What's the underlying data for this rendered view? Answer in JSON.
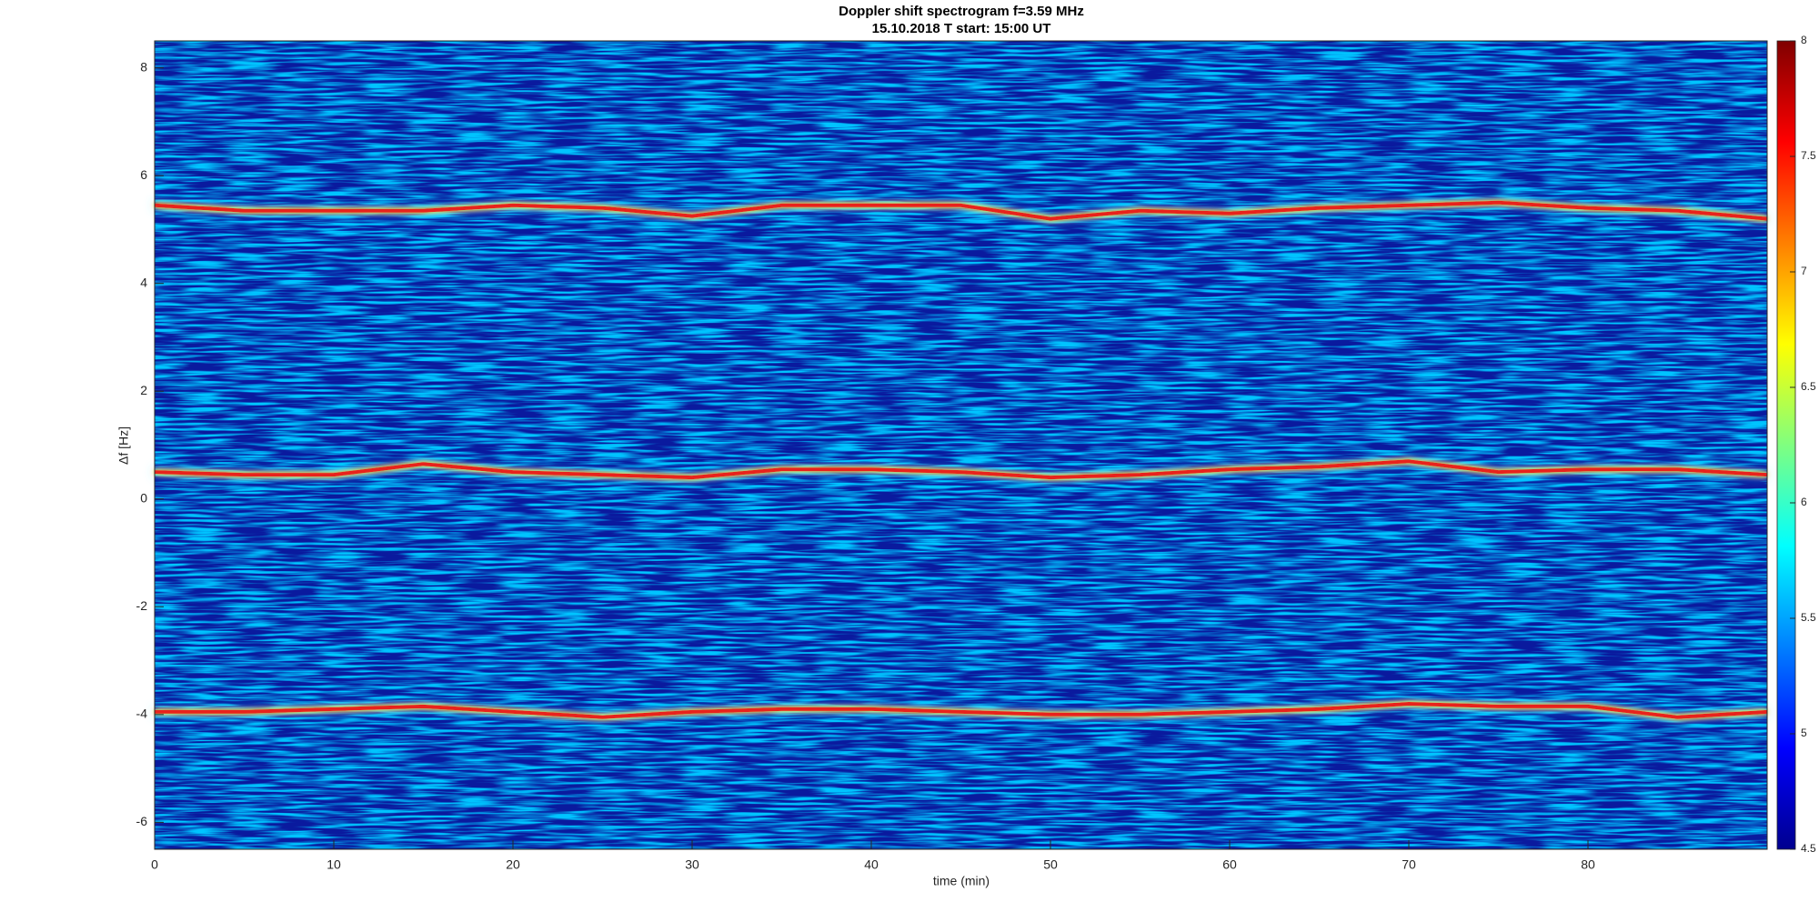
{
  "chart_data": {
    "type": "spectrogram",
    "title": "Doppler shift spectrogram f=3.59 MHz",
    "subtitle": "15.10.2018   T start: 15:00 UT",
    "xlabel": "time (min)",
    "ylabel": "Δf [Hz]",
    "xlim": [
      0,
      90
    ],
    "xticks": [
      0,
      10,
      20,
      30,
      40,
      50,
      60,
      70,
      80
    ],
    "ylim": [
      -6.5,
      8.5
    ],
    "yticks": [
      -6,
      -4,
      -2,
      0,
      2,
      4,
      6,
      8
    ],
    "clim": [
      4.5,
      8
    ],
    "cticks": [
      4.5,
      5,
      5.5,
      6,
      6.5,
      7,
      7.5,
      8
    ],
    "colormap": "jet",
    "series": [
      {
        "color": "#e8201a",
        "x": [
          0,
          5,
          10,
          15,
          20,
          25,
          30,
          35,
          40,
          45,
          50,
          55,
          60,
          65,
          70,
          75,
          80,
          85,
          90
        ],
        "values": [
          5.45,
          5.35,
          5.35,
          5.35,
          5.45,
          5.4,
          5.25,
          5.45,
          5.45,
          5.45,
          5.2,
          5.35,
          5.3,
          5.4,
          5.45,
          5.5,
          5.4,
          5.35,
          5.2
        ]
      },
      {
        "color": "#e8201a",
        "x": [
          0,
          5,
          10,
          15,
          20,
          25,
          30,
          35,
          40,
          45,
          50,
          55,
          60,
          65,
          70,
          75,
          80,
          85,
          90
        ],
        "values": [
          0.5,
          0.45,
          0.45,
          0.65,
          0.5,
          0.45,
          0.4,
          0.55,
          0.55,
          0.5,
          0.4,
          0.45,
          0.55,
          0.6,
          0.7,
          0.5,
          0.55,
          0.55,
          0.45
        ]
      },
      {
        "color": "#e8201a",
        "x": [
          0,
          5,
          10,
          15,
          20,
          25,
          30,
          35,
          40,
          45,
          50,
          55,
          60,
          65,
          70,
          75,
          80,
          85,
          90
        ],
        "values": [
          -3.95,
          -3.95,
          -3.9,
          -3.85,
          -3.95,
          -4.05,
          -3.95,
          -3.9,
          -3.9,
          -3.95,
          -4.0,
          -4.0,
          -3.95,
          -3.9,
          -3.8,
          -3.85,
          -3.85,
          -4.05,
          -3.95
        ]
      }
    ]
  }
}
